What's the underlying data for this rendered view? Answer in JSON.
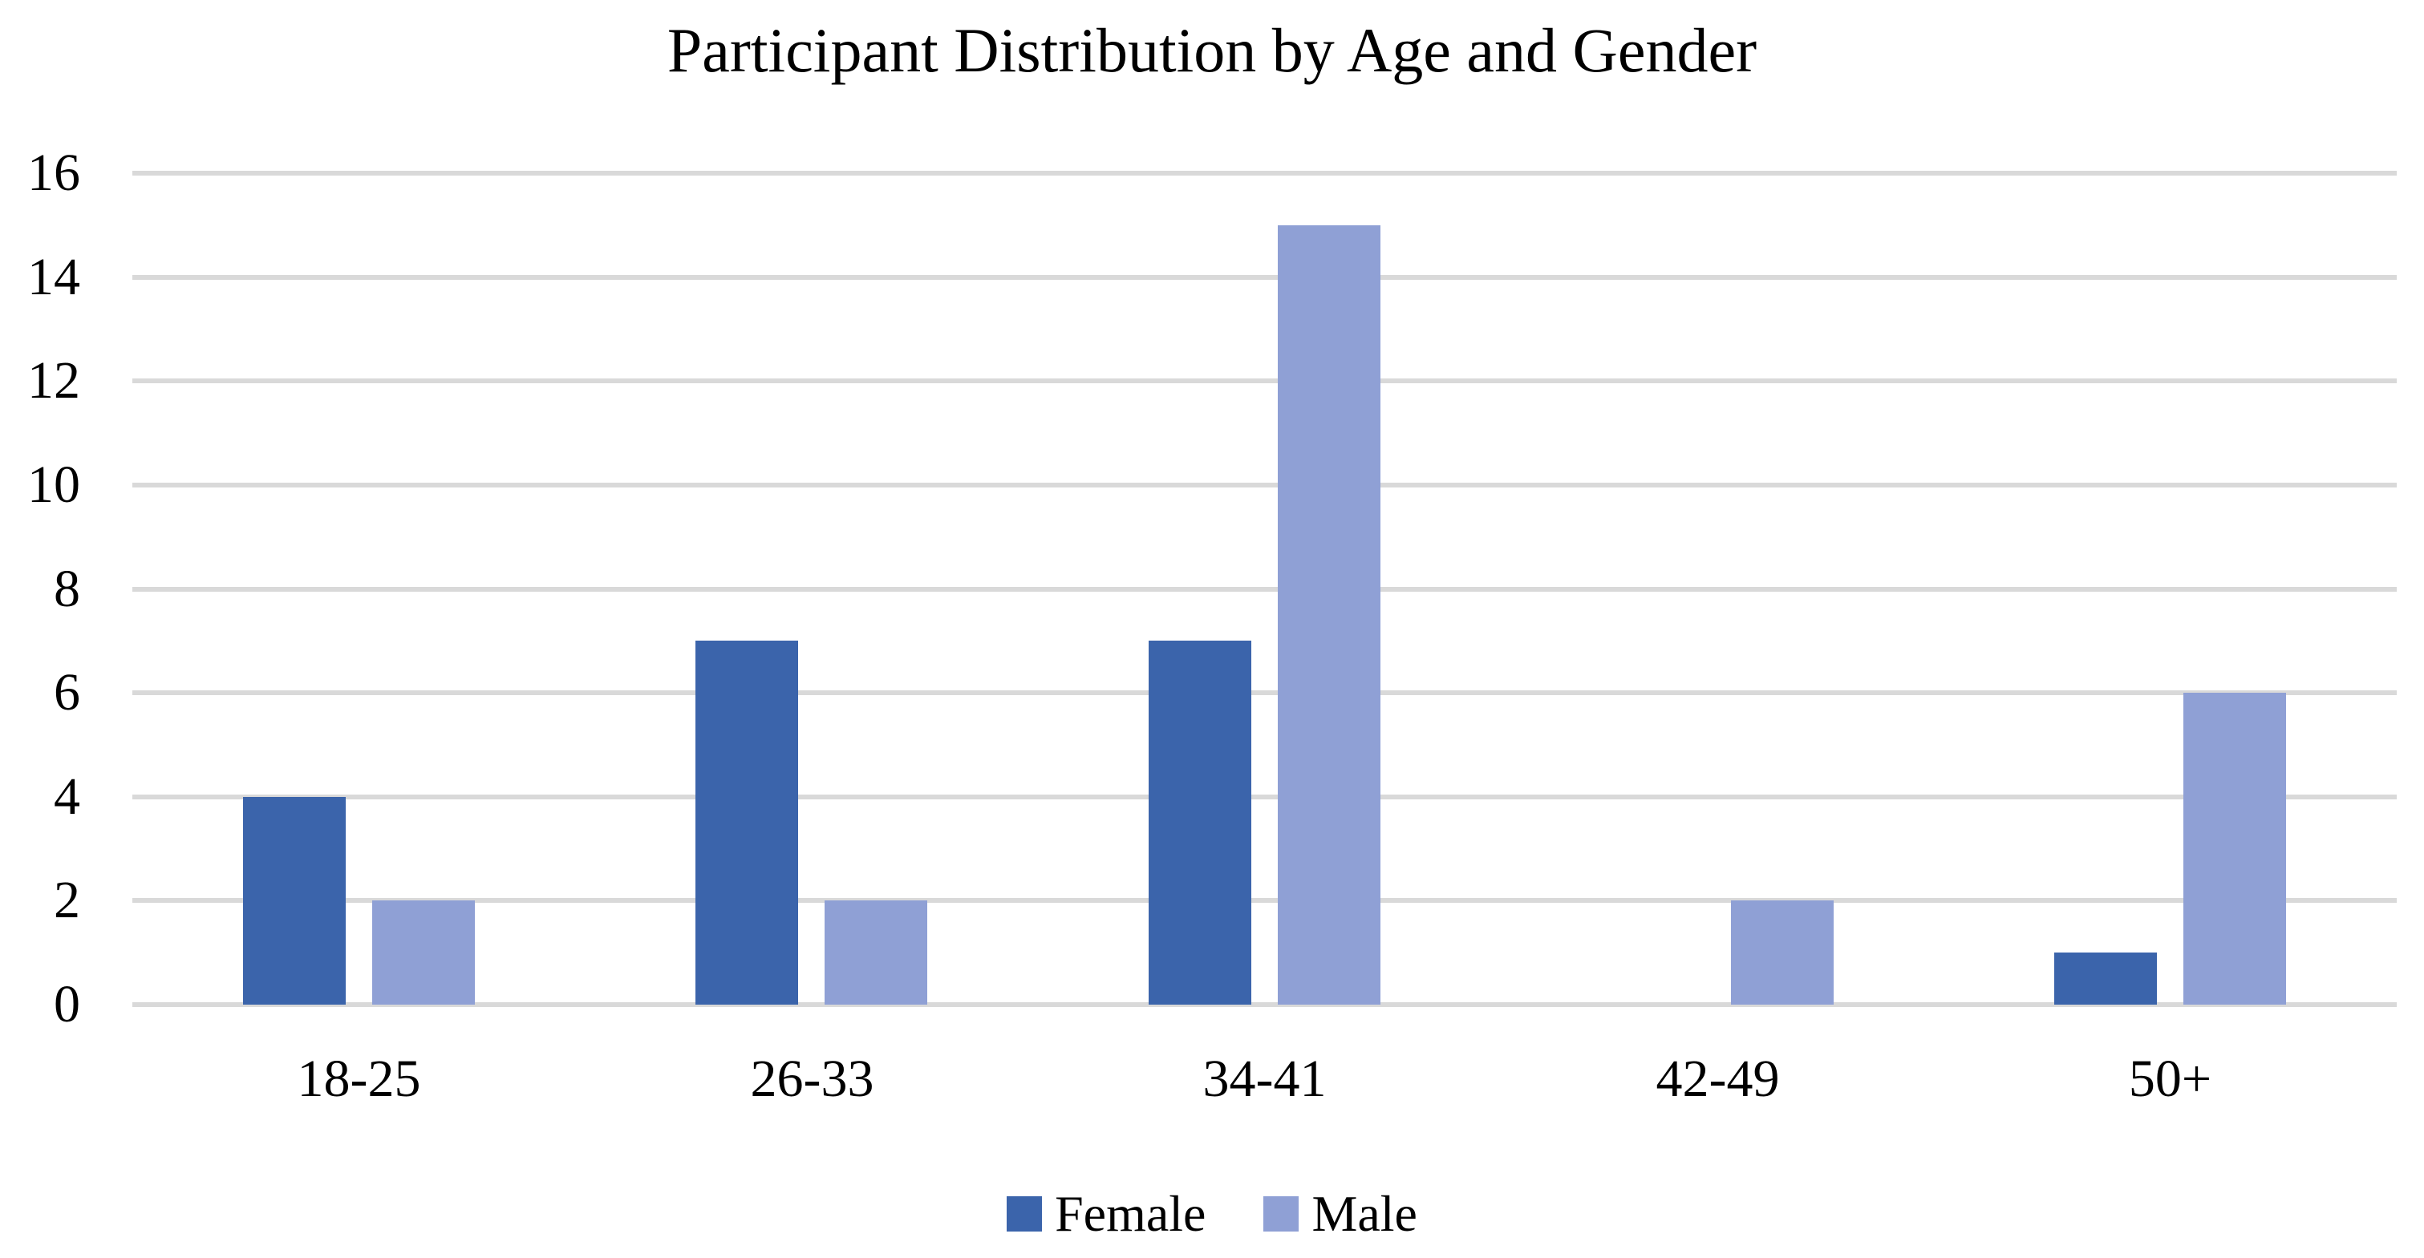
{
  "chart_data": {
    "type": "bar",
    "title": "Participant Distribution by Age and Gender",
    "categories": [
      "18-25",
      "26-33",
      "34-41",
      "42-49",
      "50+"
    ],
    "series": [
      {
        "name": "Female",
        "color": "#3B64AB",
        "values": [
          4,
          7,
          7,
          0,
          1
        ]
      },
      {
        "name": "Male",
        "color": "#8FA0D5",
        "values": [
          2,
          2,
          15,
          2,
          6
        ]
      }
    ],
    "xlabel": "",
    "ylabel": "",
    "ylim": [
      0,
      16
    ],
    "ytick_interval": 2,
    "ytick_labels": [
      "16",
      "14",
      "12",
      "10",
      "8",
      "6",
      "4",
      "2",
      "0"
    ],
    "grid": "horizontal",
    "gridline_color": "#D9D9D9",
    "background_color": "#FFFFFF",
    "text_color": "#000000",
    "legend": {
      "position": "bottom",
      "entries": [
        "Female",
        "Male"
      ]
    }
  }
}
